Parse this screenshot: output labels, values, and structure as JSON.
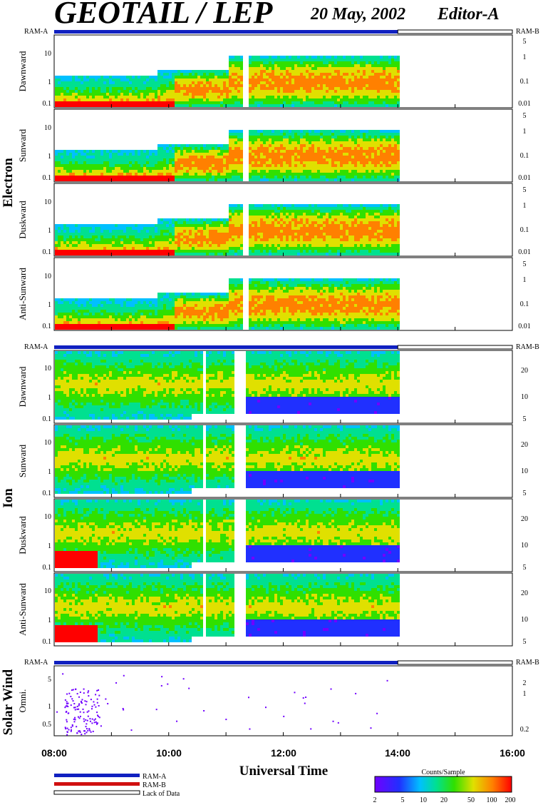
{
  "header": {
    "title": "GEOTAIL / LEP",
    "date": "20 May, 2002",
    "editor": "Editor-A"
  },
  "colors": {
    "ram_a": "#1020c0",
    "ram_b": "#d01010",
    "frame": "#000000",
    "colorbar": [
      "#7000ff",
      "#2030ff",
      "#00c0ff",
      "#00e090",
      "#30e000",
      "#e0e000",
      "#ff8000",
      "#ff0000"
    ]
  },
  "groups": {
    "electron": "Electron",
    "ion": "Ion",
    "solar_wind": "Solar Wind"
  },
  "mode_labels": {
    "ram_a": "RAM-A",
    "ram_b": "RAM-B"
  },
  "legend": {
    "ram_a": "RAM-A",
    "ram_b": "RAM-B",
    "lack": "Lack of Data"
  },
  "colorbar": {
    "title": "Counts/Sample",
    "ticks": [
      "2",
      "5",
      "10",
      "20",
      "50",
      "100",
      "200"
    ]
  },
  "x_axis": {
    "title": "Universal Time",
    "ticks": [
      "08:00",
      "10:00",
      "12:00",
      "14:00",
      "16:00"
    ]
  },
  "chart_data": [
    {
      "type": "heatmap",
      "group": "Electron",
      "panel": "Dawnward",
      "xrange": [
        "08:00",
        "16:00"
      ],
      "data_end": "14:00",
      "left_ticks": [
        "10",
        "1",
        "0.1"
      ],
      "right_ticks": [
        "5",
        "1",
        "0.1",
        "0.01"
      ],
      "log_y": true
    },
    {
      "type": "heatmap",
      "group": "Electron",
      "panel": "Sunward",
      "xrange": [
        "08:00",
        "16:00"
      ],
      "data_end": "14:00",
      "left_ticks": [
        "10",
        "1",
        "0.1"
      ],
      "right_ticks": [
        "5",
        "1",
        "0.1",
        "0.01"
      ],
      "log_y": true
    },
    {
      "type": "heatmap",
      "group": "Electron",
      "panel": "Duskward",
      "xrange": [
        "08:00",
        "16:00"
      ],
      "data_end": "14:00",
      "left_ticks": [
        "10",
        "1",
        "0.1"
      ],
      "right_ticks": [
        "5",
        "1",
        "0.1",
        "0.01"
      ],
      "log_y": true
    },
    {
      "type": "heatmap",
      "group": "Electron",
      "panel": "Anti-Sunward",
      "xrange": [
        "08:00",
        "16:00"
      ],
      "data_end": "14:00",
      "left_ticks": [
        "10",
        "1",
        "0.1"
      ],
      "right_ticks": [
        "5",
        "1",
        "0.1",
        "0.01"
      ],
      "log_y": true
    },
    {
      "type": "heatmap",
      "group": "Ion",
      "panel": "Dawnward",
      "xrange": [
        "08:00",
        "16:00"
      ],
      "data_end": "14:00",
      "left_ticks": [
        "10",
        "1",
        "0.1"
      ],
      "right_ticks": [
        "20",
        "10",
        "5"
      ],
      "log_y": true
    },
    {
      "type": "heatmap",
      "group": "Ion",
      "panel": "Sunward",
      "xrange": [
        "08:00",
        "16:00"
      ],
      "data_end": "14:00",
      "left_ticks": [
        "10",
        "1",
        "0.1"
      ],
      "right_ticks": [
        "20",
        "10",
        "5"
      ],
      "log_y": true
    },
    {
      "type": "heatmap",
      "group": "Ion",
      "panel": "Duskward",
      "xrange": [
        "08:00",
        "16:00"
      ],
      "data_end": "14:00",
      "left_ticks": [
        "10",
        "1",
        "0.1"
      ],
      "right_ticks": [
        "20",
        "10",
        "5"
      ],
      "log_y": true
    },
    {
      "type": "heatmap",
      "group": "Ion",
      "panel": "Anti-Sunward",
      "xrange": [
        "08:00",
        "16:00"
      ],
      "data_end": "14:00",
      "left_ticks": [
        "10",
        "1",
        "0.1"
      ],
      "right_ticks": [
        "20",
        "10",
        "5"
      ],
      "log_y": true
    },
    {
      "type": "heatmap",
      "group": "Solar Wind",
      "panel": "Omni.",
      "xrange": [
        "08:00",
        "16:00"
      ],
      "data_end": "14:00",
      "left_ticks": [
        "5",
        "1",
        "0.5"
      ],
      "right_ticks": [
        "2",
        "1",
        "0.2"
      ],
      "log_y": true
    }
  ]
}
